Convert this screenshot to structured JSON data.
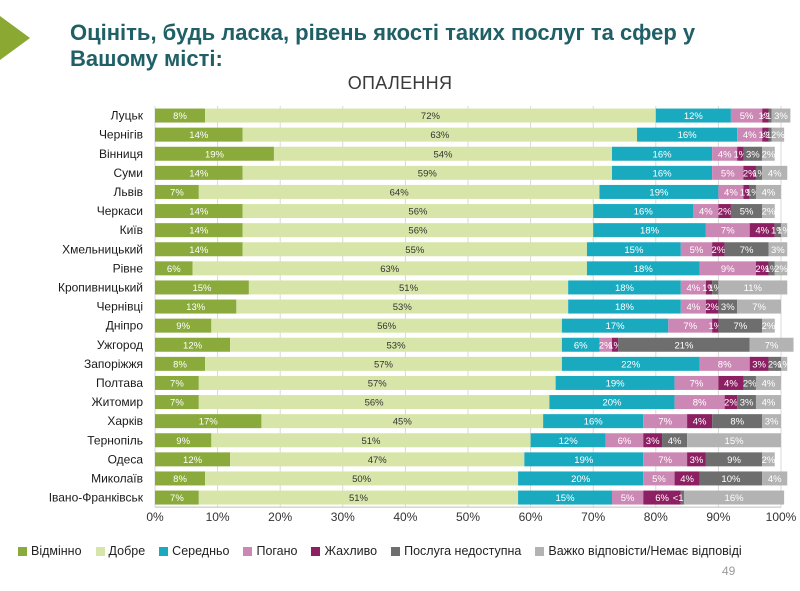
{
  "slide": {
    "title": "Оцініть, будь ласка, рівень якості таких послуг та сфер у Вашому місті:",
    "page_number": "49"
  },
  "chart_data": {
    "type": "bar",
    "orientation": "horizontal",
    "stacked": true,
    "title": "ОПАЛЕННЯ",
    "xlim": [
      0,
      100
    ],
    "xticks": [
      "0%",
      "10%",
      "20%",
      "30%",
      "40%",
      "50%",
      "60%",
      "70%",
      "80%",
      "90%",
      "100%"
    ],
    "legend_position": "bottom",
    "categories": [
      "Луцьк",
      "Чернігів",
      "Вінниця",
      "Суми",
      "Львів",
      "Черкаси",
      "Київ",
      "Хмельницький",
      "Рівне",
      "Кропивницький",
      "Чернівці",
      "Дніпро",
      "Ужгород",
      "Запоріжжя",
      "Полтава",
      "Житомир",
      "Харків",
      "Тернопіль",
      "Одеса",
      "Миколаїв",
      "Івано-Франківськ"
    ],
    "series": [
      {
        "name": "Відмінно",
        "color": "#8aaa3c",
        "values": [
          8,
          14,
          19,
          14,
          7,
          14,
          14,
          14,
          6,
          15,
          13,
          9,
          12,
          8,
          7,
          7,
          17,
          9,
          12,
          8,
          7
        ],
        "labels": [
          "8%",
          "14%",
          "19%",
          "14%",
          "7%",
          "14%",
          "14%",
          "14%",
          "6%",
          "15%",
          "13%",
          "9%",
          "12%",
          "8%",
          "7%",
          "7%",
          "17%",
          "9%",
          "12%",
          "8%",
          "7%"
        ]
      },
      {
        "name": "Добре",
        "color": "#d7e6a8",
        "values": [
          72,
          63,
          54,
          59,
          64,
          56,
          56,
          55,
          63,
          51,
          53,
          56,
          53,
          57,
          57,
          56,
          45,
          51,
          47,
          50,
          51
        ],
        "labels": [
          "72%",
          "63%",
          "54%",
          "59%",
          "64%",
          "56%",
          "56%",
          "55%",
          "63%",
          "51%",
          "53%",
          "56%",
          "53%",
          "57%",
          "57%",
          "56%",
          "45%",
          "51%",
          "47%",
          "50%",
          "51%"
        ]
      },
      {
        "name": "Середньо",
        "color": "#1aaac0",
        "values": [
          12,
          16,
          16,
          16,
          19,
          16,
          18,
          15,
          18,
          18,
          18,
          17,
          6,
          22,
          19,
          20,
          16,
          12,
          19,
          20,
          15
        ],
        "labels": [
          "12%",
          "16%",
          "16%",
          "16%",
          "19%",
          "16%",
          "18%",
          "15%",
          "18%",
          "18%",
          "18%",
          "17%",
          "6%",
          "22%",
          "19%",
          "20%",
          "16%",
          "12%",
          "19%",
          "20%",
          "15%"
        ]
      },
      {
        "name": "Погано",
        "color": "#cc88b4",
        "values": [
          5,
          4,
          4,
          5,
          4,
          4,
          7,
          5,
          9,
          4,
          4,
          7,
          2,
          8,
          7,
          8,
          7,
          6,
          7,
          5,
          5
        ],
        "labels": [
          "5%",
          "4%",
          "4%",
          "5%",
          "4%",
          "4%",
          "7%",
          "5%",
          "9%",
          "4%",
          "4%",
          "7%",
          "2%",
          "8%",
          "7%",
          "8%",
          "7%",
          "6%",
          "7%",
          "5%",
          "5%"
        ]
      },
      {
        "name": "Жахливо",
        "color": "#8c2063",
        "values": [
          1,
          1,
          1,
          2,
          1,
          2,
          4,
          2,
          2,
          1,
          2,
          1,
          1,
          3,
          4,
          2,
          4,
          3,
          3,
          4,
          6
        ],
        "labels": [
          "1%",
          "1%",
          "1%",
          "2%",
          "1%",
          "2%",
          "4%",
          "2%",
          "2%",
          "1%",
          "2%",
          "1%",
          "1%",
          "3%",
          "4%",
          "2%",
          "4%",
          "3%",
          "3%",
          "4%",
          "6%"
        ]
      },
      {
        "name": "Послуга недоступна",
        "color": "#6e6e6e",
        "values": [
          0.5,
          0.5,
          3,
          1,
          1,
          5,
          1,
          7,
          1,
          1,
          3,
          7,
          21,
          2,
          2,
          3,
          8,
          4,
          9,
          10,
          0.5
        ],
        "labels": [
          "<1%",
          "<1%",
          "3%",
          "1%",
          "1%",
          "5%",
          "1%",
          "7%",
          "1%",
          "1%",
          "3%",
          "7%",
          "21%",
          "2%",
          "2%",
          "3%",
          "8%",
          "4%",
          "9%",
          "10%",
          "<1%"
        ]
      },
      {
        "name": "Важко відповісти/Немає відповіді",
        "color": "#b3b3b3",
        "values": [
          3,
          2,
          2,
          4,
          4,
          2,
          1,
          3,
          2,
          11,
          7,
          2,
          7,
          1,
          4,
          4,
          3,
          15,
          2,
          4,
          16
        ],
        "labels": [
          "3%",
          "2%",
          "2%",
          "4%",
          "4%",
          "2%",
          "1%",
          "3%",
          "2%",
          "11%",
          "7%",
          "2%",
          "7%",
          "1%",
          "4%",
          "4%",
          "3%",
          "15%",
          "2%",
          "4%",
          "16%"
        ]
      }
    ]
  }
}
